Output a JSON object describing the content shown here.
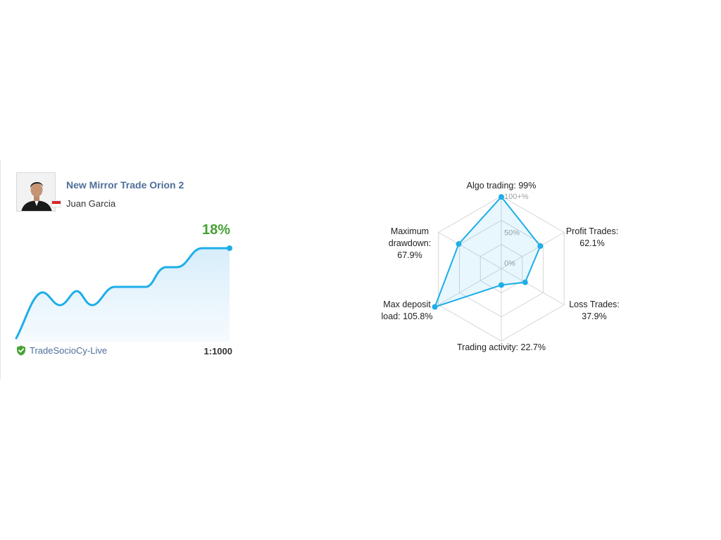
{
  "signal": {
    "title": "New Mirror Trade Orion 2",
    "author": "Juan Garcia",
    "growth": "18%",
    "broker": "TradeSocioCy-Live",
    "leverage": "1:1000",
    "accent_color": "#1eaee8",
    "growth_color": "#45a233"
  },
  "icons": {
    "verified": "shield-check-icon",
    "flag": "indonesia-flag-icon"
  },
  "growth_chart": {
    "type": "area",
    "note": "sparkline of account growth, ends at 18%"
  },
  "chart_data": {
    "type": "radar",
    "axes": [
      {
        "label_lines": [
          "Algo trading: 99%"
        ],
        "value": 99
      },
      {
        "label_lines": [
          "Profit Trades:",
          "62.1%"
        ],
        "value": 62.1
      },
      {
        "label_lines": [
          "Loss Trades:",
          "37.9%"
        ],
        "value": 37.9
      },
      {
        "label_lines": [
          "Trading activity: 22.7%"
        ],
        "value": 22.7
      },
      {
        "label_lines": [
          "Max deposit",
          "load: 105.8%"
        ],
        "value": 105.8
      },
      {
        "label_lines": [
          "Maximum",
          "drawdown:",
          "67.9%"
        ],
        "value": 67.9
      }
    ],
    "scale_labels": [
      "0%",
      "50%",
      "100+%"
    ],
    "rmax": 100,
    "color": "#1eaee8"
  }
}
